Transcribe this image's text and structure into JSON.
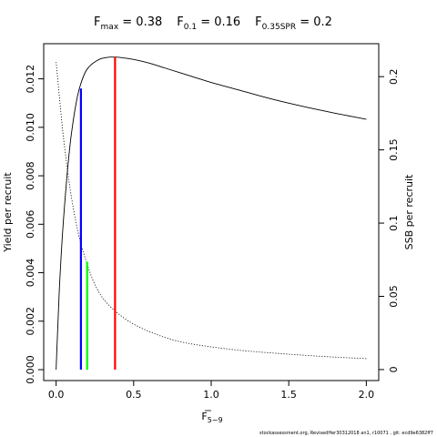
{
  "chart_data": {
    "type": "line",
    "title": {
      "fmax": {
        "base": "F",
        "sub": "max",
        "value": " = 0.38"
      },
      "f01": {
        "base": "F",
        "sub": "0.1",
        "value": " = 0.16"
      },
      "fspr": {
        "base": "F",
        "sub": "0.35SPR",
        "value": " = 0.2"
      }
    },
    "xlabel": {
      "base": "F",
      "sub": "5−9",
      "overline": true
    },
    "ylabel_left": "Yield per recruit",
    "ylabel_right": "SSB per recruit",
    "xlim": [
      -0.08,
      2.08
    ],
    "ylim_left": [
      -0.00045,
      0.01345
    ],
    "ylim_right": [
      -0.0075,
      0.2225
    ],
    "x_ticks": [
      0,
      0.5,
      1.0,
      1.5,
      2.0
    ],
    "x_tick_labels": [
      "0.0",
      "0.5",
      "1.0",
      "1.5",
      "2.0"
    ],
    "y_left_ticks": [
      0,
      0.002,
      0.004,
      0.006,
      0.008,
      0.01,
      0.012
    ],
    "y_left_tick_labels": [
      "0.000",
      "0.002",
      "0.004",
      "0.006",
      "0.008",
      "0.010",
      "0.012"
    ],
    "y_right_ticks": [
      0,
      0.05,
      0.1,
      0.15,
      0.2
    ],
    "y_right_tick_labels": [
      "0",
      "0.05",
      "0.1",
      "0.15",
      "0.2"
    ],
    "series": [
      {
        "axis": "left",
        "style": "solid",
        "x": [
          0,
          0.02,
          0.05,
          0.1,
          0.15,
          0.2,
          0.25,
          0.3,
          0.35,
          0.38,
          0.45,
          0.5,
          0.6,
          0.7,
          0.8,
          0.9,
          1.0,
          1.2,
          1.4,
          1.6,
          1.8,
          2.0
        ],
        "y": [
          0,
          0.0032,
          0.0064,
          0.0098,
          0.0116,
          0.0124,
          0.0127,
          0.01285,
          0.0129,
          0.0129,
          0.01285,
          0.0128,
          0.01265,
          0.01245,
          0.01225,
          0.01205,
          0.01185,
          0.0115,
          0.01115,
          0.01085,
          0.01058,
          0.01033
        ]
      },
      {
        "axis": "right",
        "style": "dotted",
        "x": [
          0,
          0.05,
          0.1,
          0.15,
          0.2,
          0.25,
          0.3,
          0.38,
          0.5,
          0.6,
          0.7,
          0.8,
          1.0,
          1.2,
          1.5,
          1.8,
          2.0
        ],
        "y": [
          0.21,
          0.156,
          0.117,
          0.09,
          0.072,
          0.058,
          0.049,
          0.04,
          0.031,
          0.026,
          0.022,
          0.019,
          0.0155,
          0.013,
          0.0105,
          0.0085,
          0.0075
        ]
      }
    ],
    "reference_lines": [
      {
        "label": "Fmax",
        "x": 0.38,
        "y_top": 0.0129,
        "color": "#ff0000"
      },
      {
        "label": "F0.1",
        "x": 0.16,
        "y_top": 0.0116,
        "color": "#0000ff"
      },
      {
        "label": "F0.35SPR",
        "x": 0.2,
        "y_top": 0.00445,
        "color": "#00ff00"
      }
    ]
  },
  "footer": "stockassessment.org, RevisedHer30312018 an1, r10071 , git: ecd9e6382ff7"
}
